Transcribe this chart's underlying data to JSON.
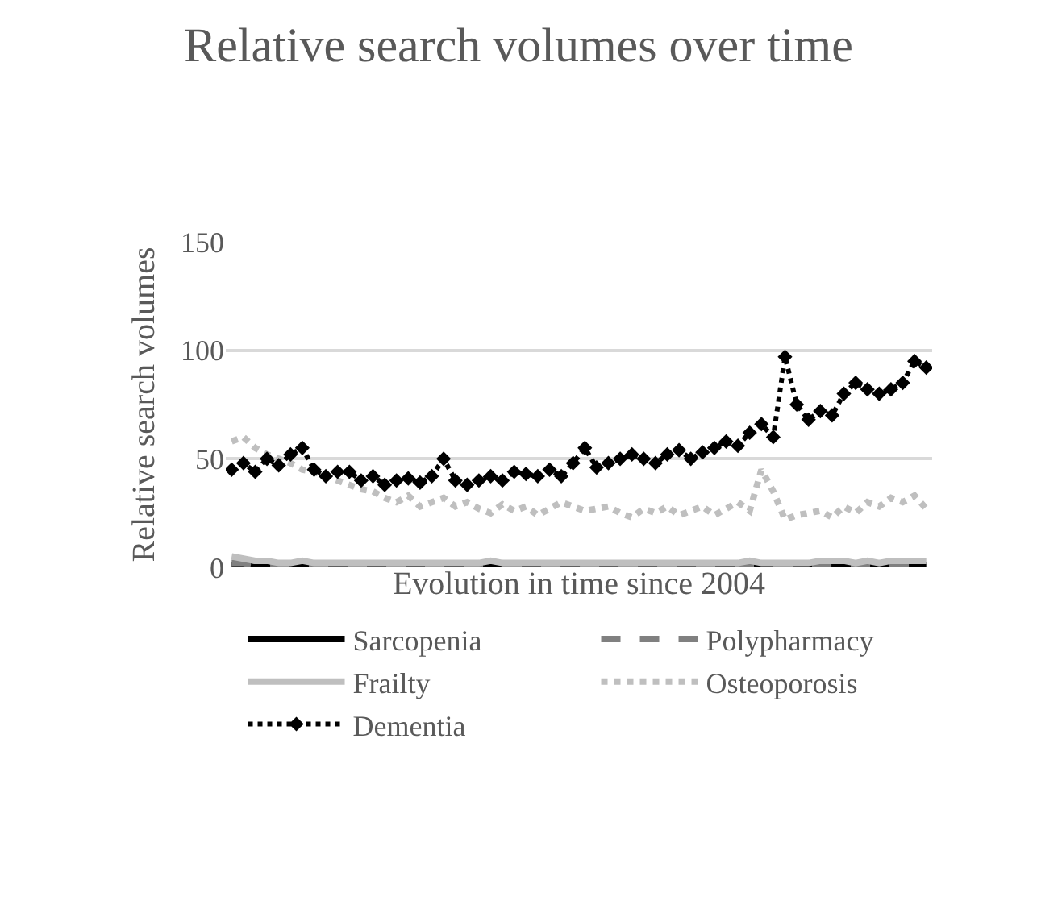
{
  "chart_data": {
    "type": "line",
    "title": "Relative search volumes over time",
    "xlabel": "Evolution in time since 2004",
    "ylabel": "Relative search volumes",
    "categories": [
      null,
      null,
      null,
      null,
      null,
      null,
      null,
      null,
      null,
      null,
      null,
      null,
      null,
      null,
      null,
      null,
      null,
      null,
      null,
      null,
      null,
      null,
      null,
      null,
      null,
      null,
      null,
      null,
      null,
      null,
      null,
      null,
      null,
      null,
      null,
      null,
      null,
      null,
      null,
      null,
      null,
      null,
      null,
      null,
      null,
      null,
      null,
      null,
      null,
      null,
      null,
      null,
      null,
      null,
      null,
      null,
      null,
      null,
      null,
      null
    ],
    "ylim": [
      0,
      150
    ],
    "yticks": [
      0,
      50,
      100,
      150
    ],
    "grid": "y",
    "legend": "bottom",
    "tick_labels": "y",
    "series": [
      {
        "name": "Sarcopenia",
        "color": "#000000",
        "line_style": "solid",
        "marker": "none",
        "values": [
          1,
          1,
          0,
          1,
          0,
          0,
          1,
          0,
          0,
          0,
          1,
          0,
          0,
          0,
          1,
          0,
          0,
          0,
          1,
          0,
          0,
          0,
          1,
          0,
          0,
          0,
          0,
          1,
          0,
          0,
          0,
          1,
          0,
          0,
          0,
          0,
          1,
          0,
          0,
          0,
          0,
          0,
          1,
          0,
          0,
          1,
          1,
          0,
          1,
          1,
          1,
          1,
          1,
          1,
          0,
          1,
          1,
          1,
          1,
          1
        ]
      },
      {
        "name": "Polypharmacy",
        "color": "#808080",
        "line_style": "dashed",
        "marker": "none",
        "values": [
          2,
          2,
          1,
          1,
          1,
          1,
          1,
          1,
          1,
          1,
          1,
          1,
          1,
          1,
          1,
          1,
          1,
          1,
          1,
          1,
          1,
          1,
          1,
          1,
          1,
          1,
          1,
          1,
          1,
          1,
          1,
          1,
          1,
          1,
          1,
          1,
          1,
          1,
          1,
          1,
          1,
          1,
          1,
          1,
          1,
          1,
          1,
          1,
          1,
          1,
          1,
          1,
          1,
          1,
          1,
          1,
          1,
          1,
          1,
          1
        ]
      },
      {
        "name": "Frailty",
        "color": "#bfbfbf",
        "line_style": "solid",
        "marker": "none",
        "values": [
          5,
          4,
          3,
          3,
          2,
          2,
          3,
          2,
          2,
          2,
          2,
          2,
          2,
          2,
          2,
          2,
          2,
          2,
          2,
          2,
          2,
          2,
          3,
          2,
          2,
          2,
          2,
          2,
          2,
          2,
          2,
          2,
          2,
          2,
          2,
          2,
          2,
          2,
          2,
          2,
          2,
          2,
          2,
          2,
          3,
          2,
          2,
          2,
          2,
          2,
          3,
          3,
          3,
          2,
          3,
          2,
          3,
          3,
          3,
          3
        ]
      },
      {
        "name": "Osteoporosis",
        "color": "#bfbfbf",
        "line_style": "dotted",
        "marker": "none",
        "values": [
          58,
          60,
          55,
          52,
          50,
          48,
          45,
          44,
          42,
          40,
          38,
          36,
          35,
          32,
          30,
          33,
          28,
          30,
          32,
          28,
          30,
          27,
          25,
          29,
          26,
          28,
          24,
          27,
          30,
          28,
          26,
          27,
          28,
          25,
          23,
          27,
          25,
          28,
          24,
          26,
          28,
          24,
          27,
          30,
          26,
          45,
          35,
          22,
          24,
          25,
          26,
          23,
          28,
          25,
          30,
          28,
          32,
          30,
          33,
          27
        ]
      },
      {
        "name": "Dementia",
        "color": "#000000",
        "line_style": "dotted",
        "marker": "diamond",
        "values": [
          45,
          48,
          44,
          50,
          47,
          52,
          55,
          45,
          42,
          44,
          44,
          40,
          42,
          38,
          40,
          41,
          39,
          42,
          50,
          40,
          38,
          40,
          42,
          40,
          44,
          43,
          42,
          45,
          42,
          48,
          55,
          46,
          48,
          50,
          52,
          50,
          48,
          52,
          54,
          50,
          53,
          55,
          58,
          56,
          62,
          66,
          60,
          97,
          75,
          68,
          72,
          70,
          80,
          85,
          82,
          80,
          82,
          85,
          95,
          92
        ]
      }
    ]
  }
}
